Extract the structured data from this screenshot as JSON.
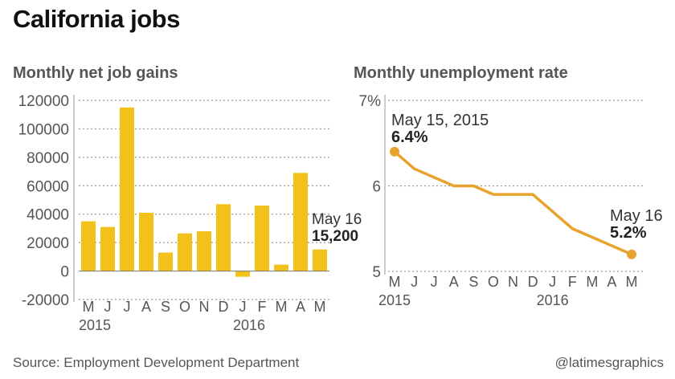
{
  "title": "California jobs",
  "source": "Source: Employment Development Department",
  "credit": "@latimesgraphics",
  "colors": {
    "bar": "#f2c11a",
    "line": "#e8a22e",
    "grid": "#999999",
    "text": "#333333"
  },
  "chart_data": [
    {
      "type": "bar",
      "title": "Monthly net job gains",
      "categories": [
        "M",
        "J",
        "J",
        "A",
        "S",
        "O",
        "N",
        "D",
        "J",
        "F",
        "M",
        "A",
        "M"
      ],
      "year_labels": [
        {
          "label": "2015",
          "index": 0
        },
        {
          "label": "2016",
          "index": 8
        }
      ],
      "values": [
        35000,
        31000,
        115000,
        41000,
        13000,
        26500,
        28000,
        47000,
        -4000,
        46000,
        4500,
        69000,
        15200
      ],
      "yticks": [
        -20000,
        0,
        20000,
        40000,
        60000,
        80000,
        100000,
        120000
      ],
      "ylim": [
        -20000,
        120000
      ],
      "grid": true,
      "annotation": {
        "line1": "May 16",
        "line2": "15,200",
        "index": 12
      }
    },
    {
      "type": "line",
      "title": "Monthly unemployment rate",
      "categories": [
        "M",
        "J",
        "J",
        "A",
        "S",
        "O",
        "N",
        "D",
        "J",
        "F",
        "M",
        "A",
        "M"
      ],
      "year_labels": [
        {
          "label": "2015",
          "index": 0
        },
        {
          "label": "2016",
          "index": 8
        }
      ],
      "values": [
        6.4,
        6.2,
        6.1,
        6.0,
        6.0,
        5.9,
        5.9,
        5.9,
        5.7,
        5.5,
        5.4,
        5.3,
        5.2
      ],
      "yticks": [
        {
          "value": 5,
          "label": "5"
        },
        {
          "value": 6,
          "label": "6"
        },
        {
          "value": 7,
          "label": "7%"
        }
      ],
      "ylim": [
        5,
        7
      ],
      "grid": true,
      "annotations": [
        {
          "line1": "May 15, 2015",
          "line2": "6.4%",
          "index": 0
        },
        {
          "line1": "May 16",
          "line2": "5.2%",
          "index": 12
        }
      ]
    }
  ]
}
